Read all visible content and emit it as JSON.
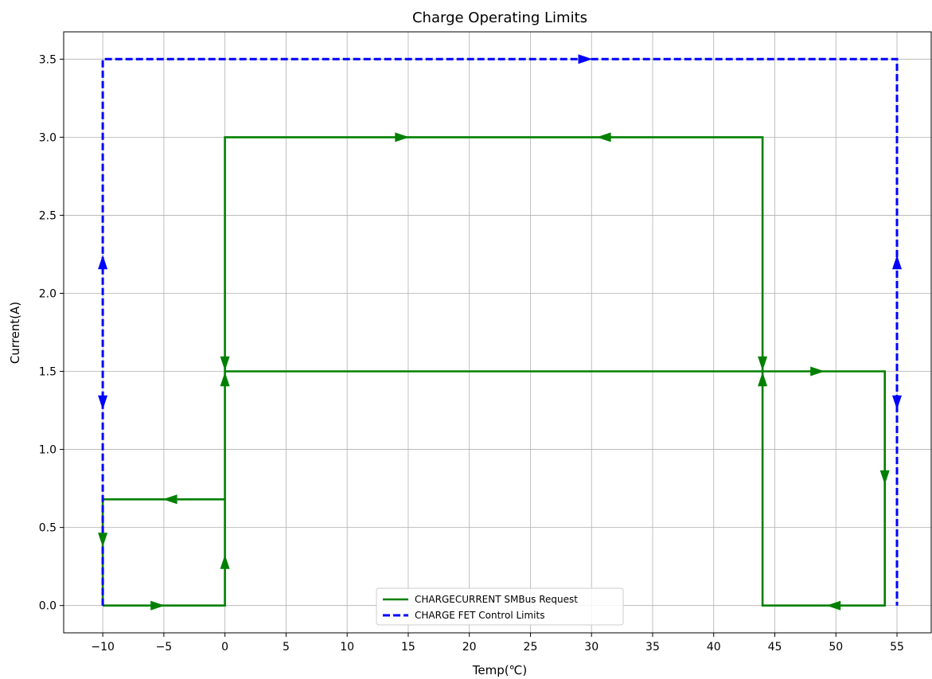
{
  "chart_data": {
    "type": "line",
    "title": "Charge Operating Limits",
    "xlabel": "Temp(℃)",
    "ylabel": "Current(A)",
    "xlim": [
      -13.2,
      57.8
    ],
    "ylim": [
      -0.175,
      3.675
    ],
    "xticks": [
      -10,
      -5,
      0,
      5,
      10,
      15,
      20,
      25,
      30,
      35,
      40,
      45,
      50,
      55
    ],
    "xtick_labels": [
      "−10",
      "−5",
      "0",
      "5",
      "10",
      "15",
      "20",
      "25",
      "30",
      "35",
      "40",
      "45",
      "50",
      "55"
    ],
    "yticks": [
      0.0,
      0.5,
      1.0,
      1.5,
      2.0,
      2.5,
      3.0,
      3.5
    ],
    "ytick_labels": [
      "0.0",
      "0.5",
      "1.0",
      "1.5",
      "2.0",
      "2.5",
      "3.0",
      "3.5"
    ],
    "grid": true,
    "legend_position": "bottom-center",
    "series": [
      {
        "name": "CHARGECURRENT SMBus Request",
        "style": "solid",
        "color": "#008000",
        "x": [
          -10,
          0,
          0,
          44,
          44,
          54,
          54,
          44,
          44,
          0,
          0,
          -10,
          -10
        ],
        "y": [
          0,
          0,
          3.0,
          3.0,
          1.5,
          1.5,
          0,
          0,
          1.5,
          1.5,
          0.68,
          0.68,
          0
        ],
        "arrows": [
          {
            "x": -5.5,
            "y": 0.0,
            "dir": "right"
          },
          {
            "x": 0,
            "y": 0.28,
            "dir": "up"
          },
          {
            "x": 0,
            "y": 1.45,
            "dir": "up"
          },
          {
            "x": 0,
            "y": 1.55,
            "dir": "down"
          },
          {
            "x": -4.5,
            "y": 0.68,
            "dir": "left"
          },
          {
            "x": -10,
            "y": 0.42,
            "dir": "down"
          },
          {
            "x": 14.5,
            "y": 3.0,
            "dir": "right"
          },
          {
            "x": 31.0,
            "y": 3.0,
            "dir": "left"
          },
          {
            "x": 44,
            "y": 1.55,
            "dir": "down"
          },
          {
            "x": 44,
            "y": 1.45,
            "dir": "up"
          },
          {
            "x": 48.5,
            "y": 1.5,
            "dir": "right"
          },
          {
            "x": 54,
            "y": 0.82,
            "dir": "down"
          },
          {
            "x": 49.8,
            "y": 0.0,
            "dir": "left"
          }
        ]
      },
      {
        "name": "CHARGE FET Control Limits",
        "style": "dashed",
        "color": "#0000ff",
        "x": [
          -10,
          -10,
          55,
          55
        ],
        "y": [
          0,
          3.5,
          3.5,
          0
        ],
        "arrows": [
          {
            "x": -10,
            "y": 2.2,
            "dir": "up"
          },
          {
            "x": -10,
            "y": 1.3,
            "dir": "down"
          },
          {
            "x": 29.5,
            "y": 3.5,
            "dir": "right"
          },
          {
            "x": 55,
            "y": 2.2,
            "dir": "up"
          },
          {
            "x": 55,
            "y": 1.3,
            "dir": "down"
          }
        ]
      }
    ]
  }
}
